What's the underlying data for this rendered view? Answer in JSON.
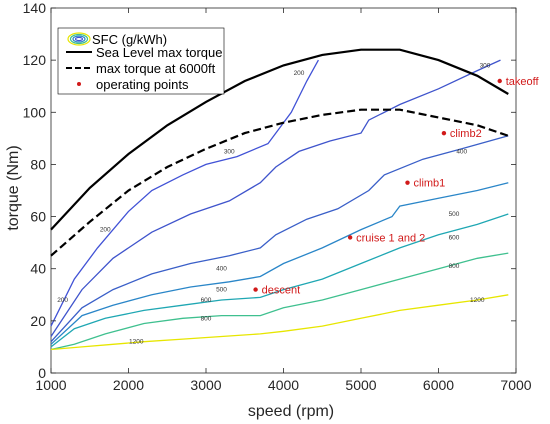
{
  "chart_data": {
    "type": "line",
    "xlabel": "speed (rpm)",
    "ylabel": "torque (Nm)",
    "xlim": [
      1000,
      7000
    ],
    "ylim": [
      0,
      140
    ],
    "xticks": [
      1000,
      2000,
      3000,
      4000,
      5000,
      6000,
      7000
    ],
    "yticks": [
      0,
      20,
      40,
      60,
      80,
      100,
      120,
      140
    ],
    "grid": false,
    "legend_position": "top-left",
    "legend": {
      "contour": "SFC (g/kWh)",
      "sea_level": "Sea Level max torque",
      "altitude": "max torque at 6000ft",
      "points": "operating points"
    },
    "max_torque_curves": [
      {
        "name": "Sea Level max torque",
        "style": "solid",
        "color": "#000000",
        "x": [
          1000,
          1500,
          2000,
          2500,
          3000,
          3500,
          4000,
          4500,
          5000,
          5500,
          6000,
          6500,
          6900
        ],
        "y": [
          55,
          71,
          84,
          95,
          104,
          112,
          118,
          122,
          124,
          124,
          120,
          114,
          107
        ]
      },
      {
        "name": "max torque at 6000ft",
        "style": "dashed",
        "color": "#000000",
        "x": [
          1000,
          1500,
          2000,
          2500,
          3000,
          3500,
          4000,
          4500,
          5000,
          5500,
          6000,
          6500,
          6900
        ],
        "y": [
          45,
          58,
          70,
          79,
          86,
          92,
          96,
          99,
          101,
          101,
          98,
          95,
          91
        ]
      }
    ],
    "sfc_contours": [
      {
        "level": "200",
        "color": "#4152d6",
        "x": [
          1000,
          1100,
          1300,
          1600,
          2000,
          2300,
          2700,
          3000,
          3400,
          3800,
          4100,
          4300,
          4450
        ],
        "y": [
          18,
          24,
          36,
          48,
          62,
          70,
          76,
          80,
          83,
          88,
          100,
          112,
          120
        ],
        "label_at": [
          [
            1150,
            28
          ],
          [
            1700,
            55
          ],
          [
            4200,
            115
          ]
        ]
      },
      {
        "level": "300",
        "color": "#3f54cc",
        "x": [
          1000,
          1400,
          1800,
          2300,
          2800,
          3300,
          3700,
          3900,
          4200,
          4600,
          5000,
          5100,
          5500,
          6000,
          6500,
          6800
        ],
        "y": [
          14,
          32,
          44,
          54,
          61,
          66,
          73,
          79,
          85,
          89,
          92,
          97,
          103,
          109,
          116,
          120
        ],
        "label_at": [
          [
            3300,
            85
          ],
          [
            6600,
            118
          ]
        ]
      },
      {
        "level": "400",
        "color": "#3a5fc8",
        "x": [
          1000,
          1400,
          1800,
          2300,
          2800,
          3300,
          3700,
          3900,
          4300,
          4700,
          5100,
          5300,
          5800,
          6300,
          6900
        ],
        "y": [
          12,
          25,
          32,
          38,
          42,
          45,
          48,
          53,
          59,
          63,
          70,
          76,
          82,
          86,
          91
        ],
        "label_at": [
          [
            3200,
            40
          ],
          [
            6300,
            85
          ]
        ]
      },
      {
        "level": "500",
        "color": "#2a86c8",
        "x": [
          1000,
          1400,
          1800,
          2300,
          2800,
          3300,
          3700,
          4000,
          4500,
          5000,
          5400,
          5500,
          6000,
          6500,
          6900
        ],
        "y": [
          11,
          22,
          26,
          30,
          33,
          35,
          37,
          42,
          48,
          55,
          60,
          64,
          67,
          70,
          73
        ],
        "label_at": [
          [
            3200,
            32
          ],
          [
            6200,
            61
          ]
        ]
      },
      {
        "level": "600",
        "color": "#1fa7b3",
        "x": [
          1000,
          1300,
          1700,
          2200,
          2700,
          3200,
          3700,
          4000,
          4500,
          5000,
          5500,
          6000,
          6500,
          6900
        ],
        "y": [
          10,
          17,
          21,
          24,
          26,
          28,
          29,
          32,
          36,
          42,
          48,
          53,
          57,
          61
        ],
        "label_at": [
          [
            3000,
            28
          ],
          [
            6200,
            52
          ]
        ]
      },
      {
        "level": "800",
        "color": "#3fc08f",
        "x": [
          1000,
          1300,
          1700,
          2200,
          2700,
          3200,
          3700,
          4000,
          4500,
          5000,
          5500,
          6000,
          6500,
          6900
        ],
        "y": [
          9,
          11,
          15,
          19,
          21,
          22,
          22,
          25,
          28,
          32,
          36,
          40,
          44,
          46
        ],
        "label_at": [
          [
            3000,
            21
          ],
          [
            6200,
            41
          ]
        ]
      },
      {
        "level": "1200",
        "color": "#e7e600",
        "x": [
          1000,
          1400,
          1800,
          2200,
          2700,
          3200,
          3700,
          4000,
          4500,
          5000,
          5500,
          6000,
          6500,
          6900
        ],
        "y": [
          9,
          10,
          11,
          12,
          13,
          14,
          15,
          16,
          18,
          21,
          24,
          26,
          28,
          30
        ],
        "label_at": [
          [
            2100,
            12
          ],
          [
            6500,
            28
          ]
        ]
      }
    ],
    "operating_points": [
      {
        "label": "takeoff",
        "x": 6790,
        "y": 112
      },
      {
        "label": "climb2",
        "x": 6070,
        "y": 92
      },
      {
        "label": "climb1",
        "x": 5600,
        "y": 73
      },
      {
        "label": "cruise 1 and 2",
        "x": 4860,
        "y": 52
      },
      {
        "label": "descent",
        "x": 3640,
        "y": 32
      }
    ],
    "point_color": "#d11a1a"
  }
}
